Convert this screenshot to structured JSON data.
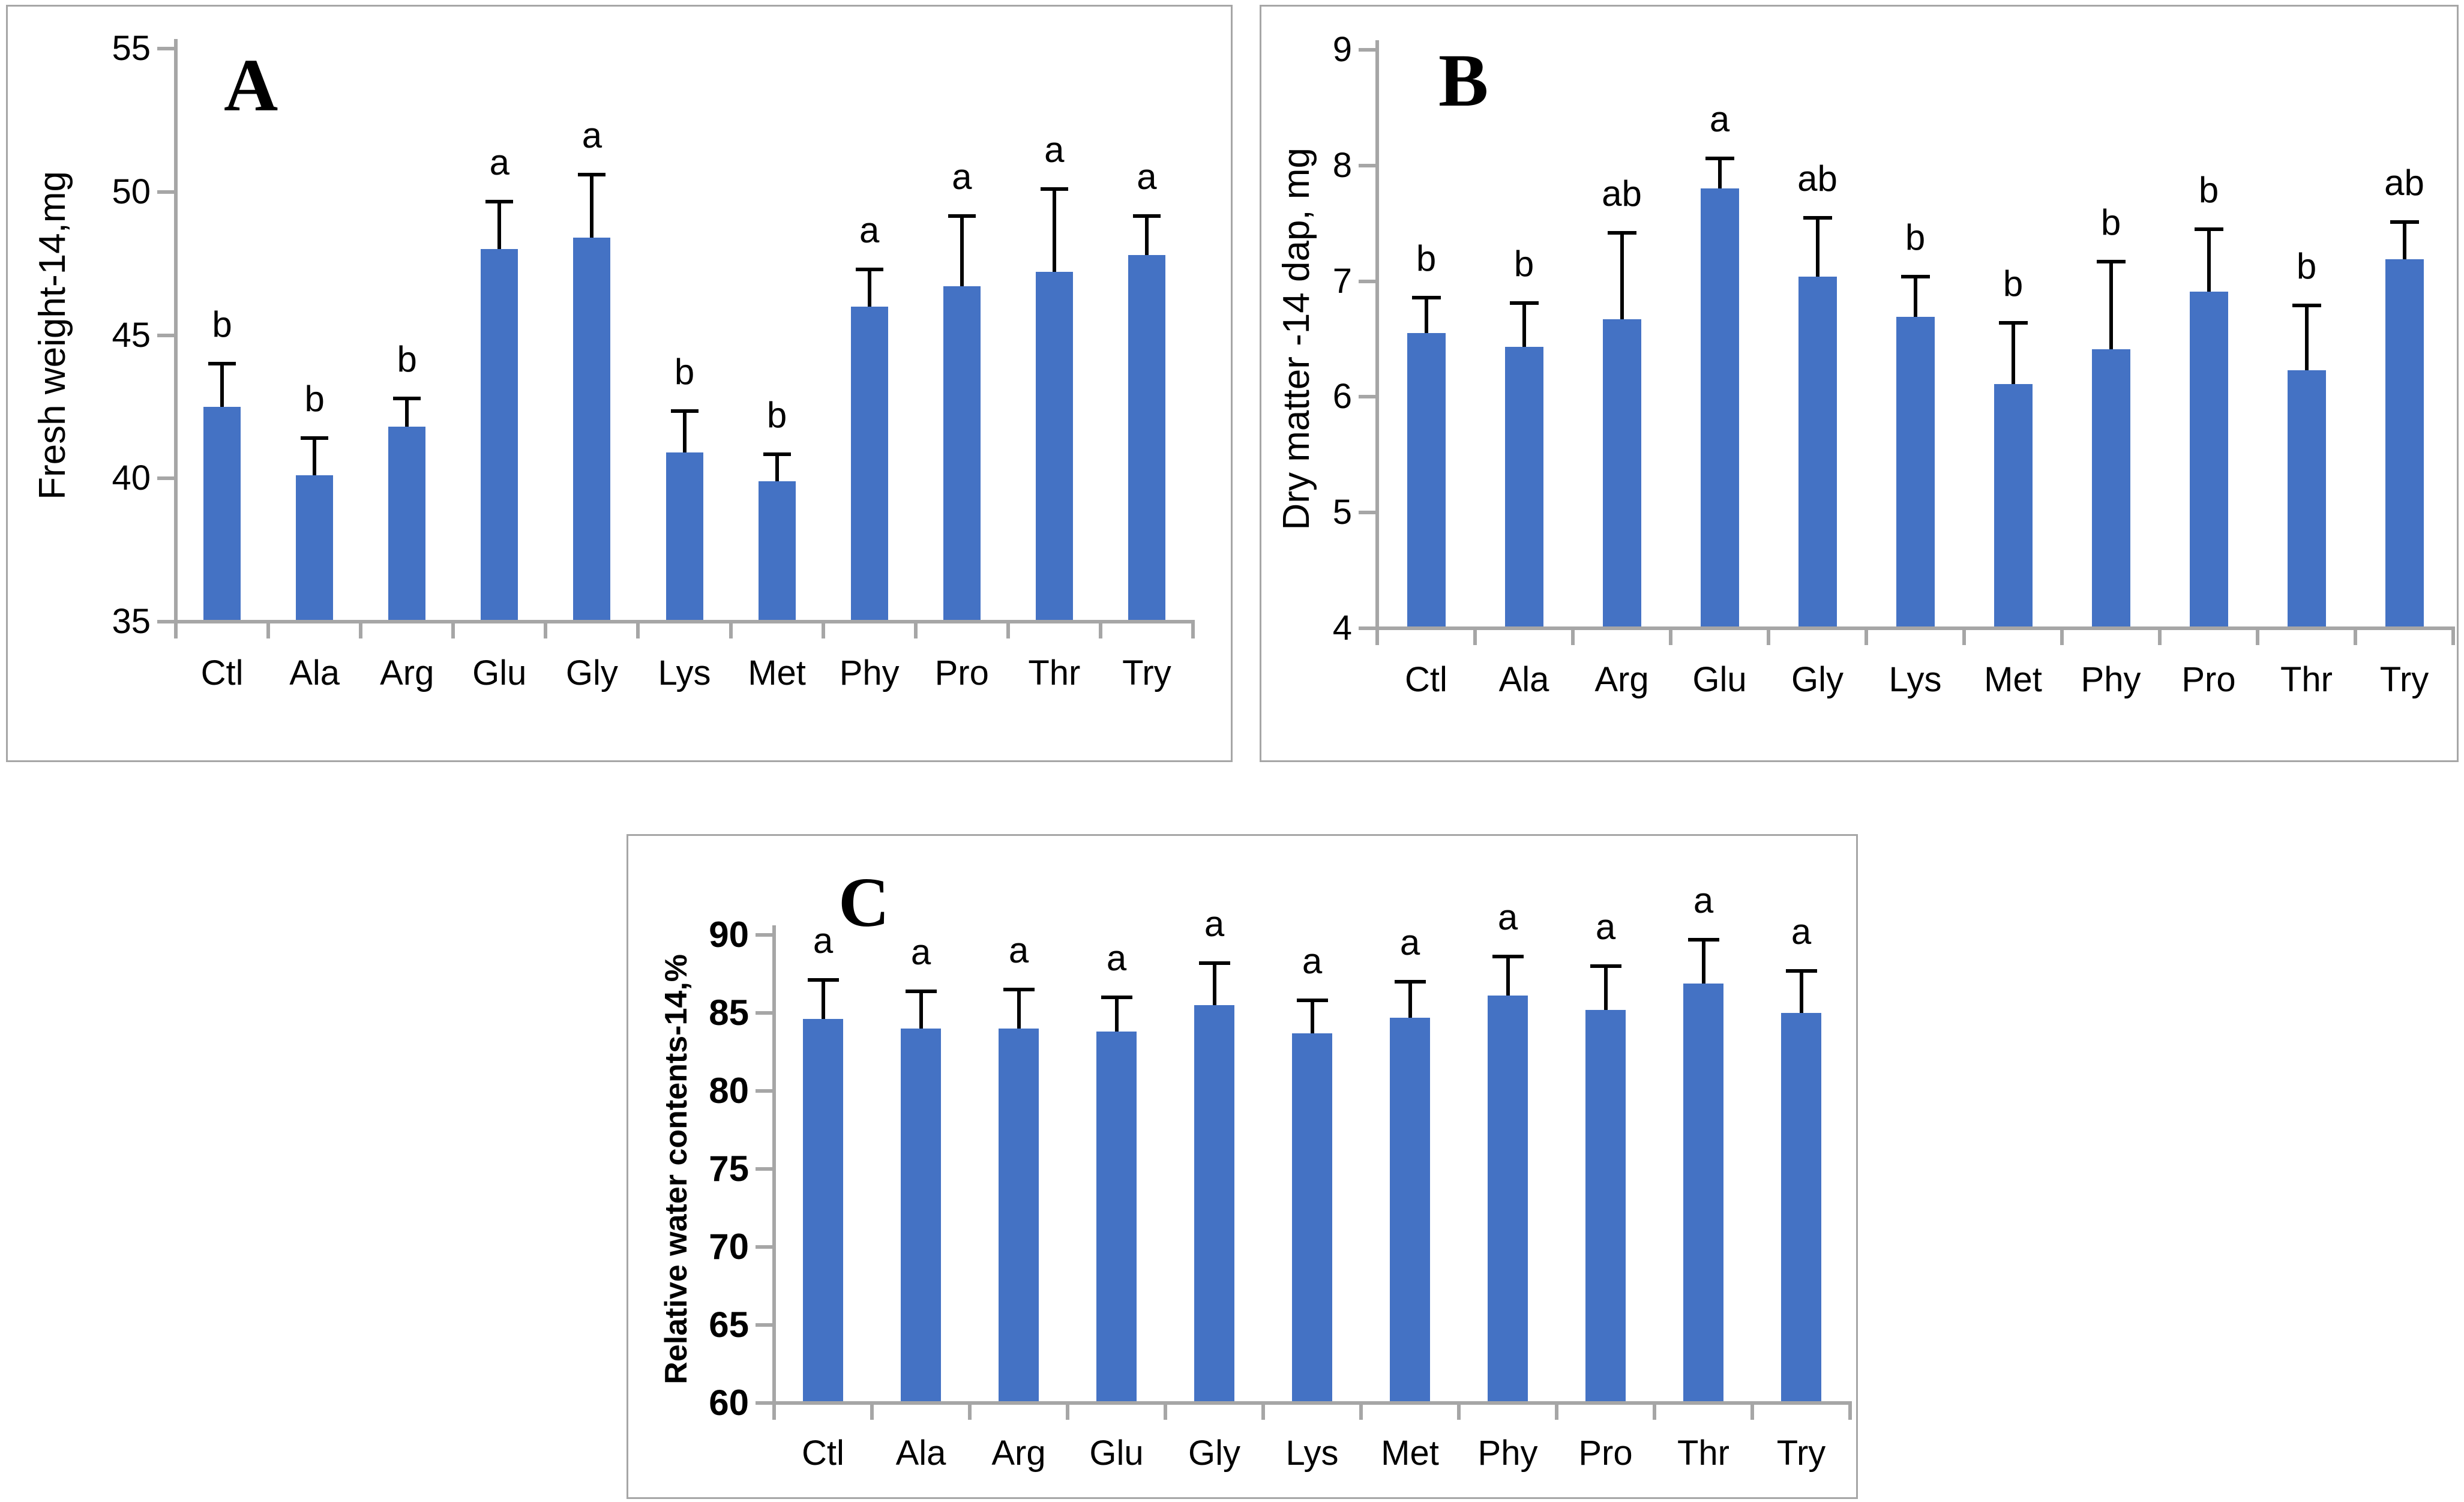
{
  "figure": {
    "background": "#ffffff",
    "panel_count": 3,
    "description_visible_text_only": true
  },
  "colors": {
    "bar_fill": "#4472c4",
    "axis_line": "#a6a6a6",
    "panel_border": "#a6a6a6",
    "error_bar": "#000000",
    "text": "#000000"
  },
  "chart_data": [
    {
      "id": "A",
      "type": "bar",
      "panel_label": "A",
      "title": "",
      "xlabel": "",
      "ylabel": "Fresh weight-14,mg",
      "ylabel_bold": false,
      "ylim": [
        35,
        55
      ],
      "yticks": [
        55,
        50,
        45,
        40,
        35
      ],
      "ytick_bold": false,
      "grid": false,
      "legend": false,
      "error_bar_direction": "plus",
      "categories": [
        "Ctl",
        "Ala",
        "Arg",
        "Glu",
        "Gly",
        "Lys",
        "Met",
        "Phy",
        "Pro",
        "Thr",
        "Try"
      ],
      "values": [
        42.5,
        40.1,
        41.8,
        48.0,
        48.4,
        40.9,
        39.9,
        46.0,
        46.7,
        47.2,
        47.8
      ],
      "errors": [
        1.5,
        1.3,
        1.0,
        1.65,
        2.2,
        1.45,
        0.95,
        1.3,
        2.45,
        2.9,
        1.35
      ],
      "sig_letters": [
        "b",
        "b",
        "b",
        "a",
        "a",
        "b",
        "b",
        "a",
        "a",
        "a",
        "a"
      ]
    },
    {
      "id": "B",
      "type": "bar",
      "panel_label": "B",
      "title": "",
      "xlabel": "",
      "ylabel": "Dry matter -14 dap, mg",
      "ylabel_bold": false,
      "ylim": [
        4,
        9
      ],
      "yticks": [
        9,
        8,
        7,
        6,
        5,
        4
      ],
      "ytick_bold": false,
      "grid": false,
      "legend": false,
      "error_bar_direction": "plus",
      "categories": [
        "Ctl",
        "Ala",
        "Arg",
        "Glu",
        "Gly",
        "Lys",
        "Met",
        "Phy",
        "Pro",
        "Thr",
        "Try"
      ],
      "values": [
        6.55,
        6.43,
        6.67,
        7.8,
        7.04,
        6.69,
        6.11,
        6.41,
        6.91,
        6.23,
        7.19
      ],
      "errors": [
        0.31,
        0.38,
        0.75,
        0.26,
        0.51,
        0.35,
        0.53,
        0.76,
        0.54,
        0.56,
        0.32
      ],
      "sig_letters": [
        "b",
        "b",
        "ab",
        "a",
        "ab",
        "b",
        "b",
        "b",
        "b",
        "b",
        "ab"
      ]
    },
    {
      "id": "C",
      "type": "bar",
      "panel_label": "C",
      "title": "",
      "xlabel": "",
      "ylabel": "Relative water contents-14,%",
      "ylabel_bold": true,
      "ylim": [
        60,
        90
      ],
      "yticks": [
        90,
        85,
        80,
        75,
        70,
        65,
        60
      ],
      "ytick_bold": true,
      "grid": false,
      "legend": false,
      "error_bar_direction": "plus",
      "categories": [
        "Ctl",
        "Ala",
        "Arg",
        "Glu",
        "Gly",
        "Lys",
        "Met",
        "Phy",
        "Pro",
        "Thr",
        "Try"
      ],
      "values": [
        84.6,
        84.0,
        84.0,
        83.8,
        85.5,
        83.7,
        84.7,
        86.1,
        85.2,
        86.9,
        85.0
      ],
      "errors": [
        2.5,
        2.4,
        2.5,
        2.2,
        2.7,
        2.1,
        2.3,
        2.5,
        2.8,
        2.8,
        2.7
      ],
      "sig_letters": [
        "a",
        "a",
        "a",
        "a",
        "a",
        "a",
        "a",
        "a",
        "a",
        "a",
        "a"
      ]
    }
  ]
}
